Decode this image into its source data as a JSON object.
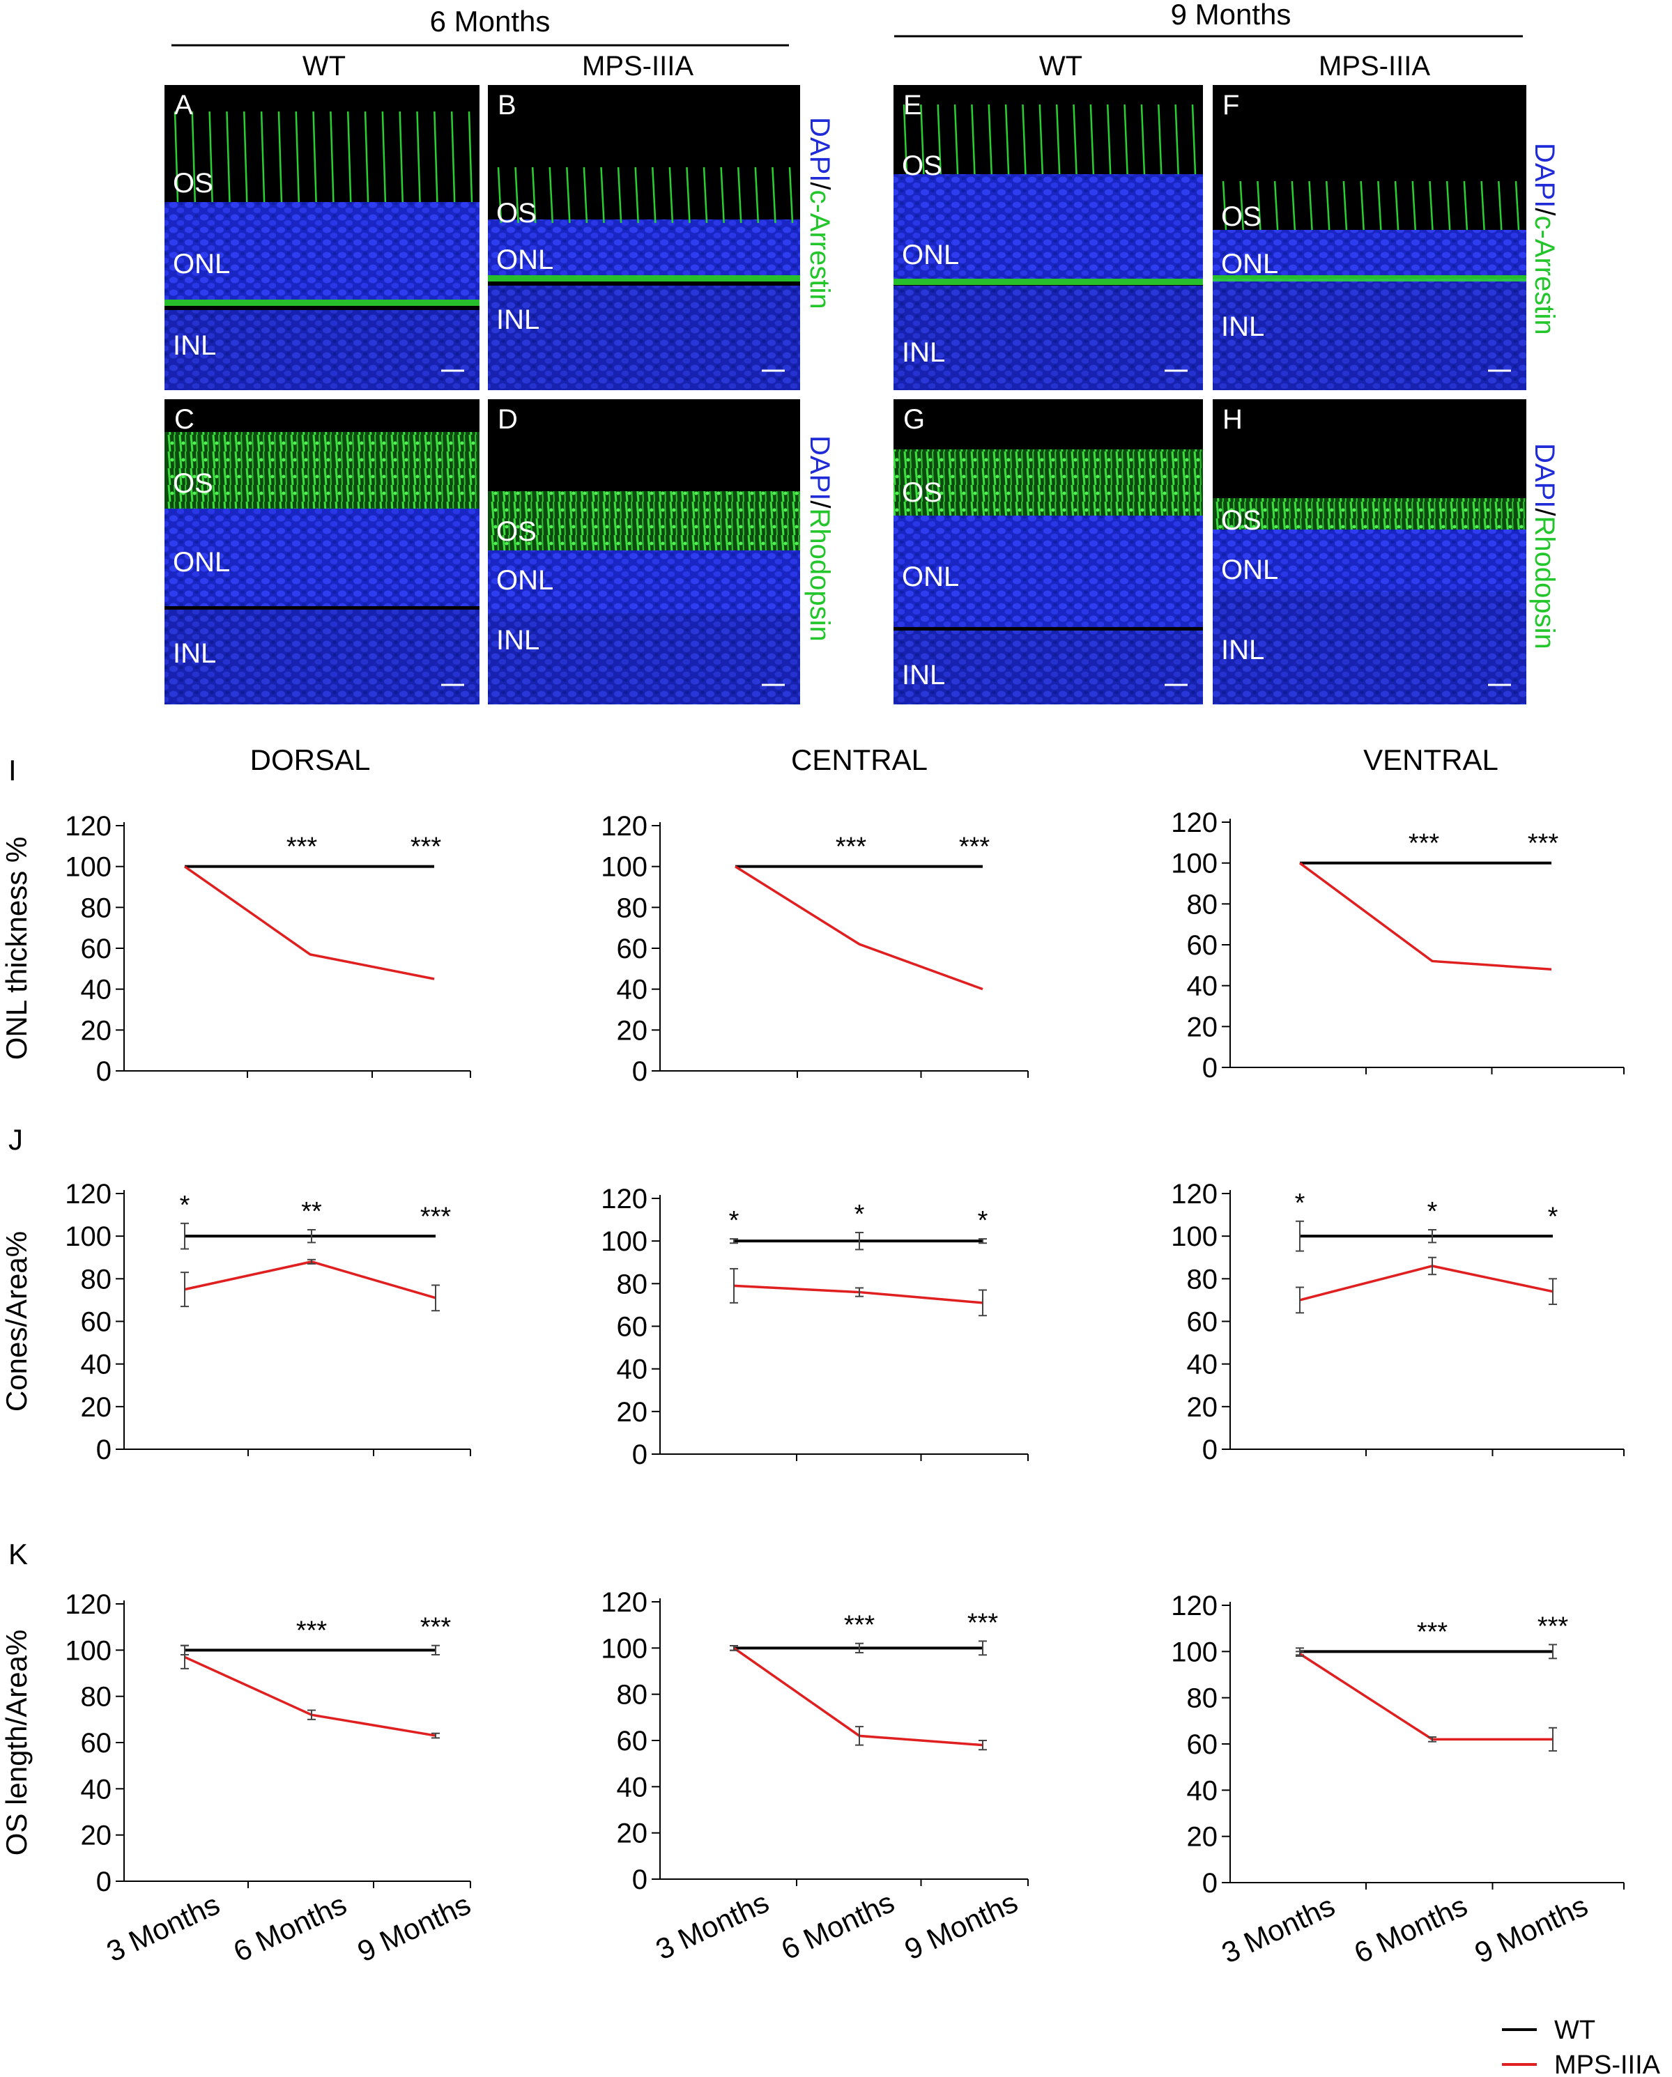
{
  "figure": {
    "header_left": "6 Months",
    "header_right": "9 Months",
    "col_wt": "WT",
    "col_mps": "MPS-IIIA"
  },
  "micrographs": {
    "panels": [
      {
        "letter": "A",
        "layers": [
          "OS",
          "ONL",
          "INL"
        ]
      },
      {
        "letter": "B",
        "layers": [
          "OS",
          "ONL",
          "INL"
        ]
      },
      {
        "letter": "E",
        "layers": [
          "OS",
          "ONL",
          "INL"
        ]
      },
      {
        "letter": "F",
        "layers": [
          "OS",
          "ONL",
          "INL"
        ]
      },
      {
        "letter": "C",
        "layers": [
          "OS",
          "ONL",
          "INL"
        ]
      },
      {
        "letter": "D",
        "layers": [
          "OS",
          "ONL",
          "INL"
        ]
      },
      {
        "letter": "G",
        "layers": [
          "OS",
          "ONL",
          "INL"
        ]
      },
      {
        "letter": "H",
        "layers": [
          "OS",
          "ONL",
          "INL"
        ]
      }
    ],
    "stain_dapi": "DAPI",
    "stain_sep": "/",
    "stain_arrestin": "c-Arrestin",
    "stain_rhodopsin": "Rhodopsin",
    "colors": {
      "dapi": "#1f2bd6",
      "marker": "#22d12a",
      "bg": "#000000"
    }
  },
  "region_titles": [
    "DORSAL",
    "CENTRAL",
    "VENTRAL"
  ],
  "row_letters": [
    "I",
    "J",
    "K"
  ],
  "legend": {
    "wt": "WT",
    "mps": "MPS-IIIA",
    "wt_color": "#000000",
    "mps_color": "#e02020"
  },
  "chart_data": [
    {
      "type": "line",
      "row": "I",
      "region": "DORSAL",
      "ylabel": "ONL thickness %",
      "categories": [
        "3 Months",
        "6 Months",
        "9 Months"
      ],
      "ylim": [
        0,
        120
      ],
      "yticks": [
        0,
        20,
        40,
        60,
        80,
        100,
        120
      ],
      "series": [
        {
          "name": "WT",
          "values": [
            100,
            100,
            100
          ]
        },
        {
          "name": "MPS-IIIA",
          "values": [
            100,
            57,
            45
          ]
        }
      ],
      "significance": [
        "",
        "***",
        "***"
      ]
    },
    {
      "type": "line",
      "row": "I",
      "region": "CENTRAL",
      "ylabel": "",
      "categories": [
        "3 Months",
        "6 Months",
        "9 Months"
      ],
      "ylim": [
        0,
        120
      ],
      "yticks": [
        0,
        20,
        40,
        60,
        80,
        100,
        120
      ],
      "series": [
        {
          "name": "WT",
          "values": [
            100,
            100,
            100
          ]
        },
        {
          "name": "MPS-IIIA",
          "values": [
            100,
            62,
            40
          ]
        }
      ],
      "significance": [
        "",
        "***",
        "***"
      ]
    },
    {
      "type": "line",
      "row": "I",
      "region": "VENTRAL",
      "ylabel": "",
      "categories": [
        "3 Months",
        "6 Months",
        "9 Months"
      ],
      "ylim": [
        0,
        120
      ],
      "yticks": [
        0,
        20,
        40,
        60,
        80,
        100,
        120
      ],
      "series": [
        {
          "name": "WT",
          "values": [
            100,
            100,
            100
          ]
        },
        {
          "name": "MPS-IIIA",
          "values": [
            100,
            52,
            48
          ]
        }
      ],
      "significance": [
        "",
        "***",
        "***"
      ]
    },
    {
      "type": "line",
      "row": "J",
      "region": "DORSAL",
      "ylabel": "Cones/Area%",
      "categories": [
        "3 Months",
        "6 Months",
        "9 Months"
      ],
      "ylim": [
        0,
        120
      ],
      "yticks": [
        0,
        20,
        40,
        60,
        80,
        100,
        120
      ],
      "series": [
        {
          "name": "WT",
          "values": [
            100,
            100,
            100
          ],
          "errors": [
            6,
            3,
            0.5
          ]
        },
        {
          "name": "MPS-IIIA",
          "values": [
            75,
            88,
            71
          ],
          "errors": [
            8,
            1,
            6
          ]
        }
      ],
      "significance": [
        "*",
        "**",
        "***"
      ]
    },
    {
      "type": "line",
      "row": "J",
      "region": "CENTRAL",
      "ylabel": "",
      "categories": [
        "3 Months",
        "6 Months",
        "9 Months"
      ],
      "ylim": [
        0,
        120
      ],
      "yticks": [
        0,
        20,
        40,
        60,
        80,
        100,
        120
      ],
      "series": [
        {
          "name": "WT",
          "values": [
            100,
            100,
            100
          ],
          "errors": [
            1,
            4,
            1
          ]
        },
        {
          "name": "MPS-IIIA",
          "values": [
            79,
            76,
            71
          ],
          "errors": [
            8,
            2,
            6
          ]
        }
      ],
      "significance": [
        "*",
        "*",
        "*"
      ]
    },
    {
      "type": "line",
      "row": "J",
      "region": "VENTRAL",
      "ylabel": "",
      "categories": [
        "3 Months",
        "6 Months",
        "9 Months"
      ],
      "ylim": [
        0,
        120
      ],
      "yticks": [
        0,
        20,
        40,
        60,
        80,
        100,
        120
      ],
      "series": [
        {
          "name": "WT",
          "values": [
            100,
            100,
            100
          ],
          "errors": [
            7,
            3,
            0.5
          ]
        },
        {
          "name": "MPS-IIIA",
          "values": [
            70,
            86,
            74
          ],
          "errors": [
            6,
            4,
            6
          ]
        }
      ],
      "significance": [
        "*",
        "*",
        "*"
      ]
    },
    {
      "type": "line",
      "row": "K",
      "region": "DORSAL",
      "ylabel": "OS length/Area%",
      "categories": [
        "3 Months",
        "6 Months",
        "9 Months"
      ],
      "ylim": [
        0,
        120
      ],
      "yticks": [
        0,
        20,
        40,
        60,
        80,
        100,
        120
      ],
      "series": [
        {
          "name": "WT",
          "values": [
            100,
            100,
            100
          ],
          "errors": [
            2,
            0.5,
            2
          ]
        },
        {
          "name": "MPS-IIIA",
          "values": [
            97,
            72,
            63
          ],
          "errors": [
            5,
            2,
            1
          ]
        }
      ],
      "significance": [
        "",
        "***",
        "***"
      ]
    },
    {
      "type": "line",
      "row": "K",
      "region": "CENTRAL",
      "ylabel": "",
      "categories": [
        "3 Months",
        "6 Months",
        "9 Months"
      ],
      "ylim": [
        0,
        120
      ],
      "yticks": [
        0,
        20,
        40,
        60,
        80,
        100,
        120
      ],
      "series": [
        {
          "name": "WT",
          "values": [
            100,
            100,
            100
          ],
          "errors": [
            1,
            2,
            3
          ]
        },
        {
          "name": "MPS-IIIA",
          "values": [
            100,
            62,
            58
          ],
          "errors": [
            1,
            4,
            2
          ]
        }
      ],
      "significance": [
        "",
        "***",
        "***"
      ]
    },
    {
      "type": "line",
      "row": "K",
      "region": "VENTRAL",
      "ylabel": "",
      "categories": [
        "3 Months",
        "6 Months",
        "9 Months"
      ],
      "ylim": [
        0,
        120
      ],
      "yticks": [
        0,
        20,
        40,
        60,
        80,
        100,
        120
      ],
      "series": [
        {
          "name": "WT",
          "values": [
            100,
            100,
            100
          ],
          "errors": [
            1.5,
            0.5,
            3
          ]
        },
        {
          "name": "MPS-IIIA",
          "values": [
            99,
            62,
            62
          ],
          "errors": [
            1,
            1,
            5
          ]
        }
      ],
      "significance": [
        "",
        "***",
        "***"
      ]
    }
  ]
}
